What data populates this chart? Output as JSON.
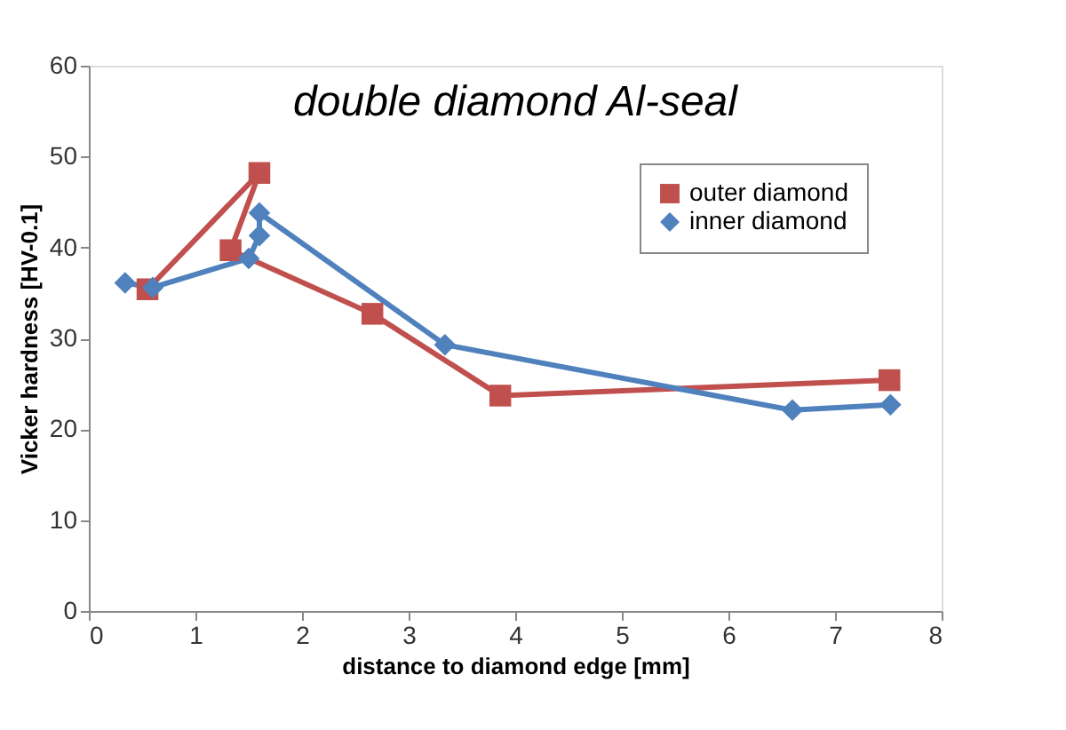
{
  "chart_data": {
    "type": "line",
    "title": "double diamond Al-seal",
    "xlabel": "distance to diamond edge  [mm]",
    "ylabel": "Vicker hardness  [HV-0.1]",
    "series": [
      {
        "name": "outer diamond",
        "color": "#c0504d",
        "marker": "square",
        "x": [
          0.55,
          1.6,
          1.33,
          2.66,
          3.86,
          7.51
        ],
        "values": [
          35.4,
          48.2,
          39.7,
          32.7,
          23.7,
          25.4
        ]
      },
      {
        "name": "inner diamond",
        "color": "#4f81bd",
        "marker": "diamond",
        "x": [
          0.34,
          0.6,
          1.5,
          1.6,
          1.6,
          3.34,
          6.6,
          7.52
        ],
        "values": [
          36.1,
          35.6,
          38.8,
          41.3,
          43.8,
          29.3,
          22.1,
          22.7
        ]
      }
    ],
    "xlim": [
      0,
      8
    ],
    "xticks": [
      0,
      1,
      2,
      3,
      4,
      5,
      6,
      7,
      8
    ],
    "ylim": [
      0,
      60
    ],
    "yticks": [
      0,
      10,
      20,
      30,
      40,
      50,
      60
    ],
    "grid": false,
    "legend": "top right",
    "line_style": "solid"
  }
}
